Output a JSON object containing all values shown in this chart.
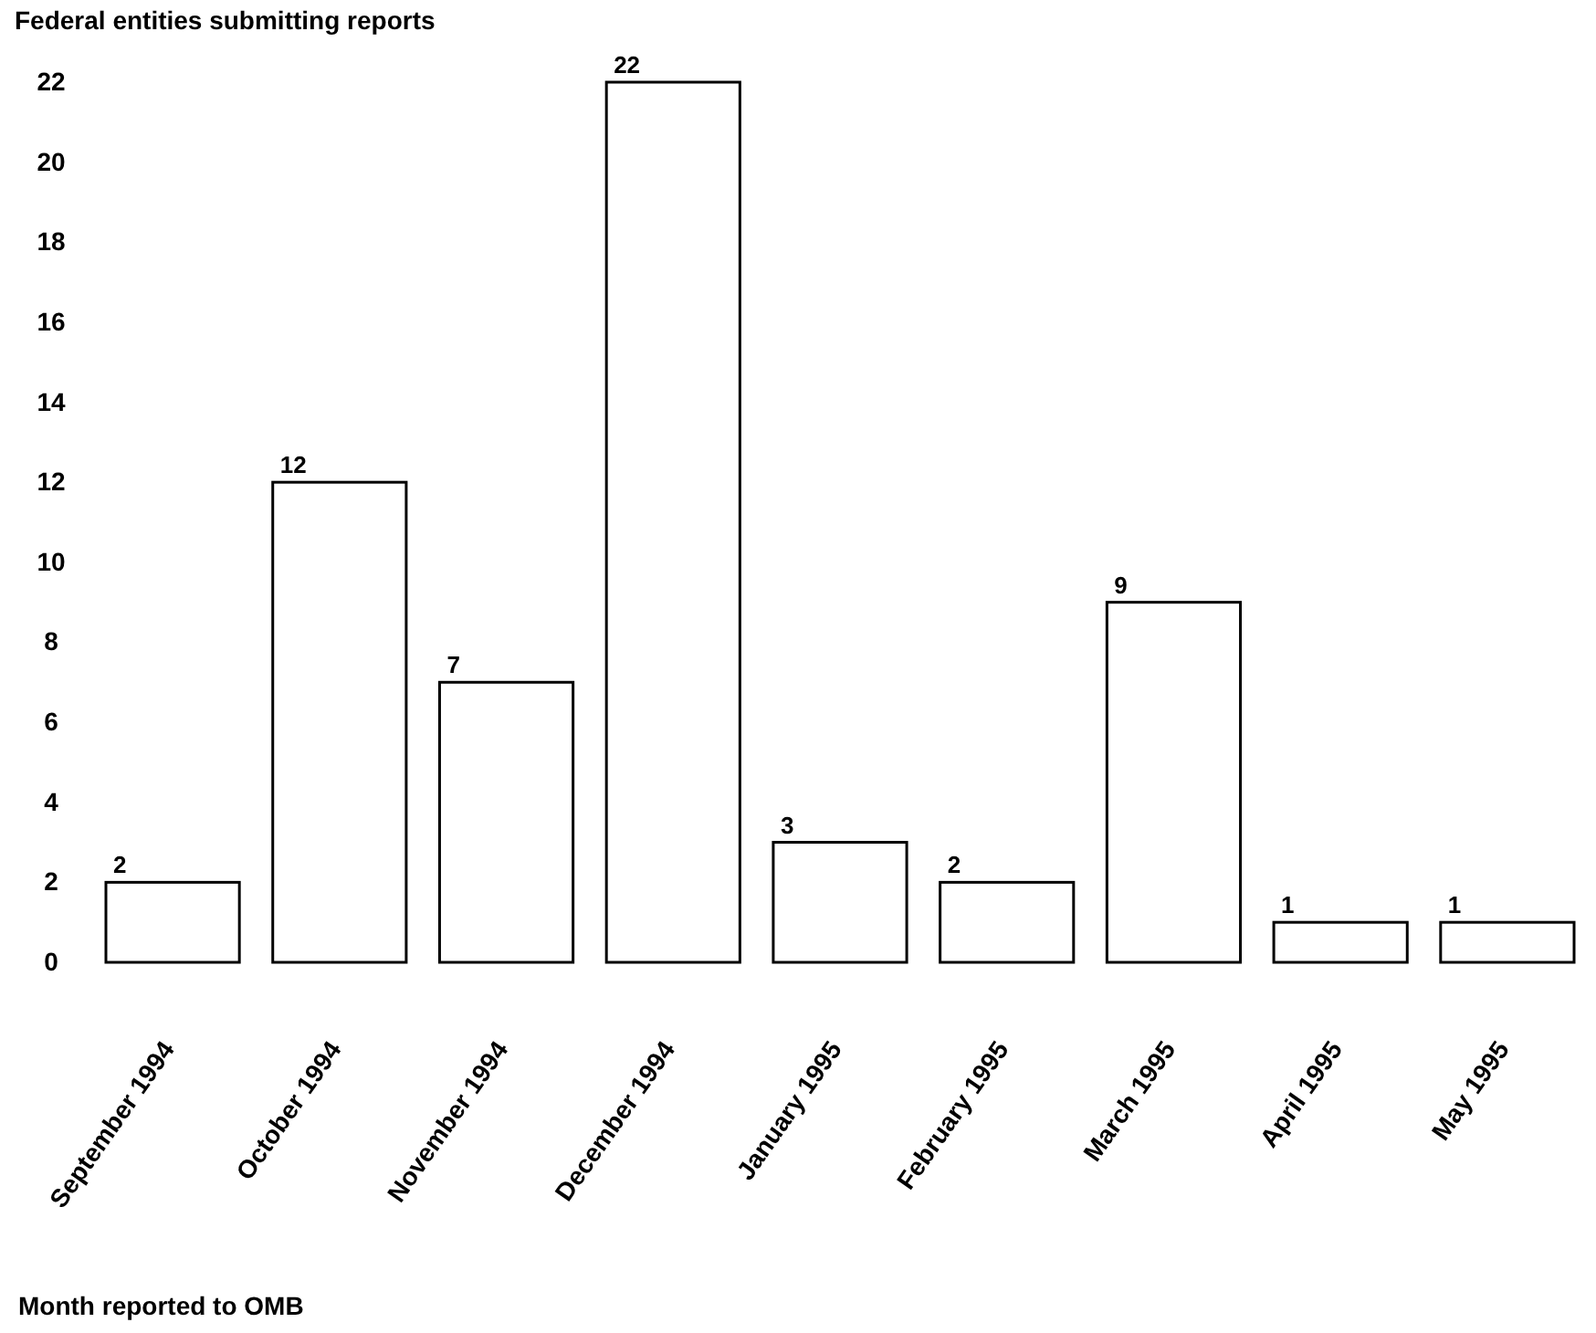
{
  "chart_data": {
    "type": "bar",
    "ylabel": "Federal entities submitting reports",
    "xlabel": "Month reported to OMB",
    "categories": [
      "September 1994",
      "October 1994",
      "November 1994",
      "December 1994",
      "January 1995",
      "February 1995",
      "March 1995",
      "April 1995",
      "May 1995"
    ],
    "values": [
      2,
      12,
      7,
      22,
      3,
      2,
      9,
      1,
      1
    ],
    "color": "#ffffff",
    "ylim": [
      0,
      22
    ],
    "yticks": [
      0,
      2,
      4,
      6,
      8,
      10,
      12,
      14,
      16,
      18,
      20,
      22
    ],
    "grid": false,
    "data_labels": true
  }
}
